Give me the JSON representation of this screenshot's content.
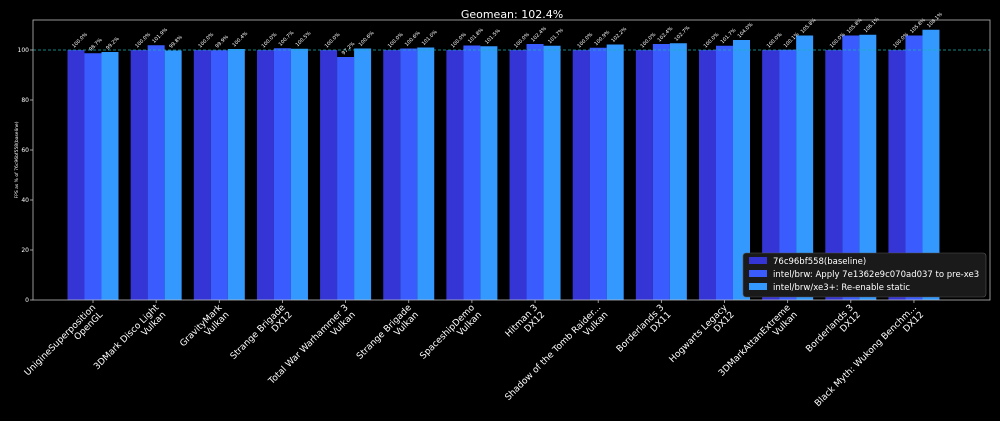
{
  "chart_data": {
    "type": "bar",
    "title": "Geomean: 102.4%",
    "ylabel": "FPS as % of 76c96bf558(baseline)",
    "xlabel": "",
    "ylim": [
      0,
      112
    ],
    "yticks": [
      0,
      20,
      40,
      60,
      80,
      100
    ],
    "reference_line": 100,
    "grid": false,
    "legend_position": "lower-right",
    "categories": [
      "UnigineSuperposition\nOpenGL",
      "3DMark Disco Light\nVulkan",
      "GravityMark\nVulkan",
      "Strange Brigade\nDX12",
      "Total War Warhammer 3\nVulkan",
      "Strange Brigade\nVulkan",
      "SpaceshipDemo\nVulkan",
      "Hitman 3\nDX12",
      "Shadow of the Tomb Raider...\nVulkan",
      "Borderlands 3\nDX11",
      "Hogwarts Legacy\nDX12",
      "3DMarkAttanExtreme\nVulkan",
      "Borderlands 3\nDX12",
      "Black Myth: Wukong Benchm...\nDX12"
    ],
    "series": [
      {
        "name": "76c96bf558(baseline)",
        "color": "#3535d6",
        "values": [
          100.0,
          100.0,
          100.0,
          100.0,
          100.0,
          100.0,
          100.0,
          100.0,
          100.0,
          100.0,
          100.0,
          100.0,
          100.0,
          100.0
        ],
        "labels": [
          "100.0%",
          "100.0%",
          "100.0%",
          "100.0%",
          "100.0%",
          "100.0%",
          "100.0%",
          "100.0%",
          "100.0%",
          "100.0%",
          "100.0%",
          "100.0%",
          "100.0%",
          "100.0%"
        ]
      },
      {
        "name": "intel/brw: Apply 7e1362e9c070ad037 to pre-xe3",
        "color": "#3a5cff",
        "values": [
          98.7,
          101.9,
          99.9,
          100.7,
          97.2,
          100.6,
          101.8,
          102.4,
          100.9,
          102.4,
          101.7,
          100.1,
          105.8,
          105.8
        ],
        "labels": [
          "98.7%",
          "101.9%",
          "99.9%",
          "100.7%",
          "97.2%",
          "100.6%",
          "101.8%",
          "102.4%",
          "100.9%",
          "102.4%",
          "101.7%",
          "100.1%",
          "105.8%",
          "105.8%"
        ]
      },
      {
        "name": "intel/brw/xe3+: Re-enable static",
        "color": "#3399ff",
        "values": [
          99.2,
          99.8,
          100.4,
          100.5,
          100.6,
          101.0,
          101.5,
          101.7,
          102.2,
          102.7,
          104.0,
          105.8,
          106.1,
          108.1
        ],
        "labels": [
          "99.2%",
          "99.8%",
          "100.4%",
          "100.5%",
          "100.6%",
          "101.0%",
          "101.5%",
          "101.7%",
          "102.2%",
          "102.7%",
          "104.0%",
          "105.8%",
          "106.1%",
          "108.1%"
        ]
      }
    ]
  },
  "colors": {
    "background": "#000000",
    "axes_frame": "#bbbbbb",
    "reference_line": "#1ab0b0",
    "text": "#ffffff",
    "legend_bg": "#1a1a1a"
  }
}
